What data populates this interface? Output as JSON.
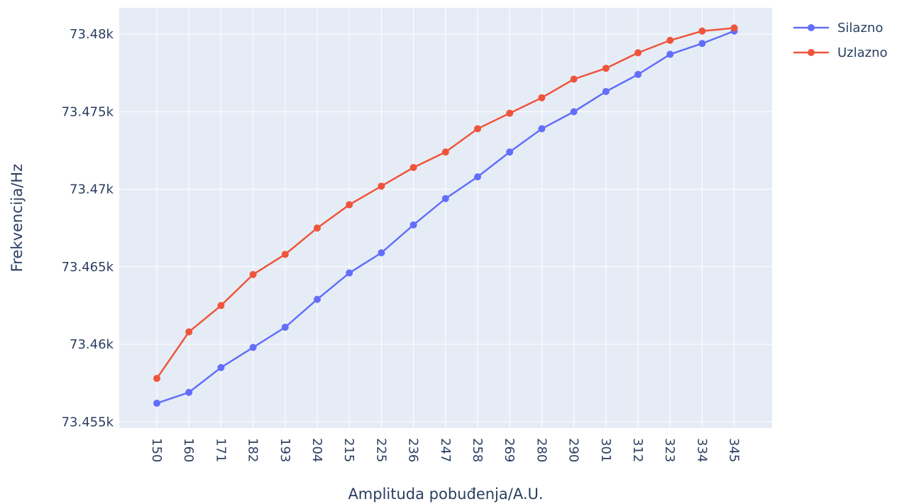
{
  "chart_data": {
    "type": "line",
    "title": "",
    "xlabel": "Amplituda pobuđenja/A.U.",
    "ylabel": "Frekvencija/Hz",
    "categories": [
      "150",
      "160",
      "171",
      "182",
      "193",
      "204",
      "215",
      "225",
      "236",
      "247",
      "258",
      "269",
      "280",
      "290",
      "301",
      "312",
      "323",
      "334",
      "345"
    ],
    "yticks": [
      73455,
      73460,
      73465,
      73470,
      73475,
      73480
    ],
    "ytick_labels": [
      "73.455k",
      "73.46k",
      "73.465k",
      "73.47k",
      "73.475k",
      "73.48k"
    ],
    "ylim": [
      73454.6,
      73481.7
    ],
    "grid": true,
    "legend_position": "top-right",
    "series": [
      {
        "name": "Silazno",
        "color": "#636efa",
        "values": [
          73456.2,
          73456.9,
          73458.5,
          73459.8,
          73461.1,
          73462.9,
          73464.6,
          73465.9,
          73467.7,
          73469.4,
          73470.8,
          73472.4,
          73473.9,
          73475.0,
          73476.3,
          73477.4,
          73478.7,
          73479.4,
          73480.2
        ]
      },
      {
        "name": "Uzlazno",
        "color": "#ef553b",
        "values": [
          73457.8,
          73460.8,
          73462.5,
          73464.5,
          73465.8,
          73467.5,
          73469.0,
          73470.2,
          73471.4,
          73472.4,
          73473.9,
          73474.9,
          73475.9,
          73477.1,
          73477.8,
          73478.8,
          73479.6,
          73480.2,
          73480.4
        ]
      }
    ]
  },
  "colors": {
    "plot_background": "#e5ecf6",
    "grid": "#ffffff",
    "text": "#2a3f5f"
  }
}
